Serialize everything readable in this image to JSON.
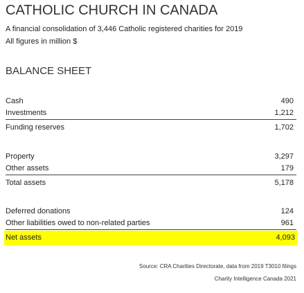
{
  "header": {
    "title": "CATHOLIC CHURCH IN CANADA",
    "subtitle": "A financial consolidation of 3,446 Catholic registered charities for 2019",
    "units": "All figures in million $"
  },
  "section_title": "BALANCE SHEET",
  "groups": [
    [
      {
        "label": "Cash",
        "value": "490"
      },
      {
        "label": "Investments",
        "value": "1,212"
      },
      {
        "label": "Funding reserves",
        "value": "1,702"
      }
    ],
    [
      {
        "label": "Property",
        "value": "3,297"
      },
      {
        "label": "Other assets",
        "value": "179"
      },
      {
        "label": "Total assets",
        "value": "5,178"
      }
    ],
    [
      {
        "label": "Deferred donations",
        "value": "124"
      },
      {
        "label": "Other liabilities owed to non-related parties",
        "value": "961"
      },
      {
        "label": "Net assets",
        "value": "4,093"
      }
    ]
  ],
  "footer": [
    "Source: CRA Charities Directorate, data from 2019 T3010 filings",
    "Charity Intelligence Canada 2021"
  ]
}
